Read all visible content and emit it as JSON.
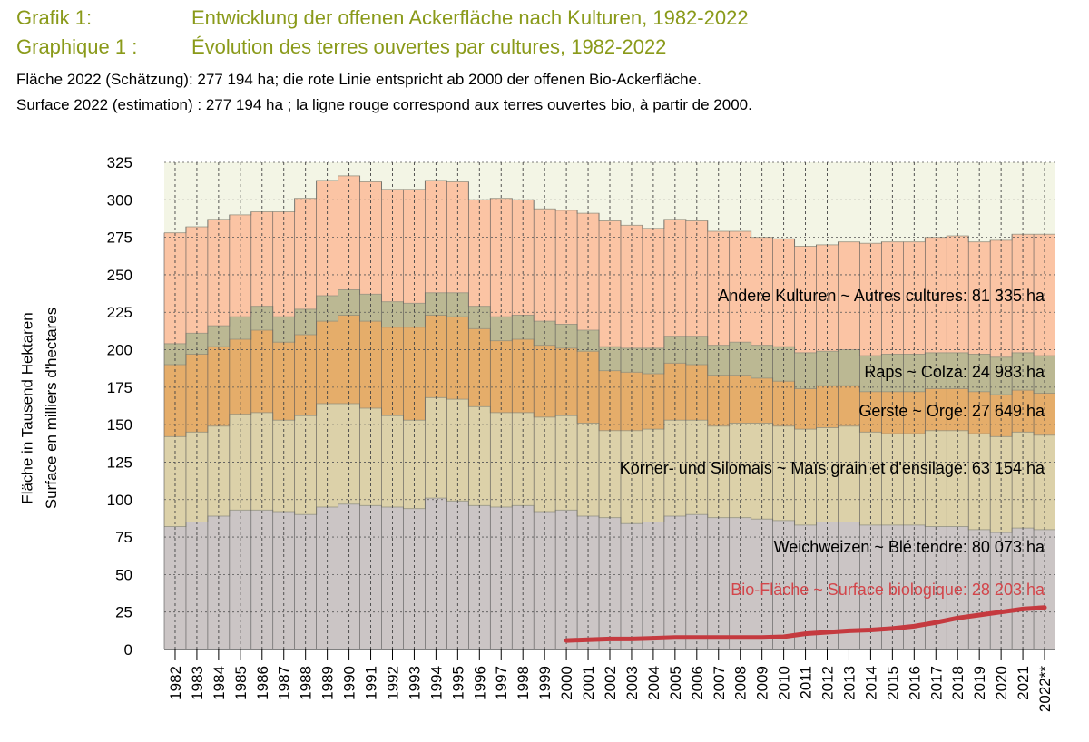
{
  "title_de_label": "Grafik 1:",
  "title_de": "Entwicklung der offenen Ackerfläche nach Kulturen, 1982-2022",
  "title_fr_label": "Graphique 1 :",
  "title_fr": "Évolution des terres ouvertes par cultures, 1982-2022",
  "subtitle_de": "Fläche 2022 (Schätzung): 277 194 ha; die rote Linie entspricht ab 2000 der offenen Bio-Ackerfläche.",
  "subtitle_fr": "Surface 2022 (estimation) : 277 194 ha ; la ligne rouge correspond aux terres ouvertes bio, à partir de 2000.",
  "ylabel_de": "Fläche in Tausend Hektaren",
  "ylabel_fr": "Surface en milliers d'hectares",
  "colors": {
    "weichweizen": "#cbc5c5",
    "mais": "#dcd1a9",
    "gerste": "#e5ad6a",
    "raps": "#bbb893",
    "andere": "#fbc4a4",
    "bio": "#c53a3f",
    "bio_label": "#d3454a",
    "plot_bg": "#f3f5e5"
  },
  "chart_data": {
    "type": "bar",
    "stacked": true,
    "categories": [
      "1982",
      "1983",
      "1984",
      "1985",
      "1986",
      "1987",
      "1988",
      "1989",
      "1990",
      "1991",
      "1992",
      "1993",
      "1994",
      "1995",
      "1996",
      "1997",
      "1998",
      "1999",
      "2000",
      "2001",
      "2002",
      "2003",
      "2004",
      "2005",
      "2006",
      "2007",
      "2008",
      "2009",
      "2010",
      "2011",
      "2012",
      "2013",
      "2014",
      "2015",
      "2016",
      "2017",
      "2018",
      "2019",
      "2020",
      "2021",
      "2022**"
    ],
    "ylim": [
      0,
      325
    ],
    "yticks": [
      0,
      25,
      50,
      75,
      100,
      125,
      150,
      175,
      200,
      225,
      250,
      275,
      300,
      325
    ],
    "grid": true,
    "series": [
      {
        "name": "Weichweizen ~ Blé tendre",
        "label": "Weichweizen   ~   Blé tendre: 80 073 ha",
        "color_key": "weichweizen",
        "values": [
          82,
          85,
          89,
          93,
          93,
          92,
          90,
          95,
          97,
          96,
          95,
          94,
          101,
          99,
          96,
          95,
          96,
          92,
          93,
          89,
          88,
          84,
          85,
          89,
          90,
          88,
          88,
          87,
          86,
          83,
          85,
          85,
          83,
          83,
          83,
          82,
          82,
          80,
          78,
          81,
          80
        ]
      },
      {
        "name": "Körner- und Silomais ~ Maïs grain et d'ensilage",
        "label": "Körner- und Silomais   ~   Maïs grain et d'ensilage: 63 154 ha",
        "color_key": "mais",
        "values": [
          60,
          60,
          60,
          64,
          65,
          61,
          66,
          69,
          67,
          65,
          61,
          59,
          67,
          68,
          66,
          63,
          62,
          63,
          63,
          62,
          58,
          62,
          62,
          64,
          63,
          61,
          63,
          64,
          63,
          64,
          63,
          64,
          62,
          61,
          61,
          64,
          64,
          64,
          64,
          64,
          63
        ]
      },
      {
        "name": "Gerste ~ Orge",
        "label": "Gerste   ~   Orge: 27 649 ha",
        "color_key": "gerste",
        "values": [
          48,
          52,
          53,
          50,
          55,
          52,
          54,
          55,
          59,
          58,
          59,
          62,
          55,
          55,
          52,
          48,
          49,
          48,
          45,
          48,
          40,
          39,
          37,
          38,
          37,
          34,
          32,
          30,
          30,
          27,
          28,
          27,
          27,
          28,
          28,
          28,
          28,
          28,
          28,
          28,
          28
        ]
      },
      {
        "name": "Raps ~ Colza",
        "label": "Raps   ~   Colza: 24 983 ha",
        "color_key": "raps",
        "values": [
          14,
          14,
          14,
          15,
          16,
          17,
          17,
          17,
          17,
          18,
          17,
          16,
          15,
          16,
          15,
          16,
          16,
          16,
          16,
          14,
          16,
          16,
          17,
          18,
          19,
          20,
          22,
          22,
          23,
          24,
          23,
          24,
          24,
          25,
          25,
          24,
          24,
          25,
          25,
          25,
          25
        ]
      },
      {
        "name": "Andere Kulturen ~ Autres cultures",
        "label": "Andere Kulturen   ~   Autres cultures: 81 335 ha",
        "color_key": "andere",
        "values": [
          74,
          71,
          71,
          68,
          63,
          70,
          74,
          77,
          76,
          75,
          75,
          76,
          75,
          74,
          71,
          79,
          77,
          75,
          76,
          78,
          84,
          82,
          80,
          78,
          77,
          76,
          74,
          72,
          72,
          71,
          71,
          72,
          75,
          75,
          75,
          77,
          78,
          75,
          78,
          79,
          81
        ]
      }
    ],
    "bio_line": {
      "name": "Bio-Fläche ~ Surface biologique",
      "label": "Bio-Fläche   ~   Surface biologique: 28 203 ha",
      "color_key": "bio",
      "x": [
        "2000",
        "2001",
        "2002",
        "2003",
        "2004",
        "2005",
        "2006",
        "2007",
        "2008",
        "2009",
        "2010",
        "2011",
        "2012",
        "2013",
        "2014",
        "2015",
        "2016",
        "2017",
        "2018",
        "2019",
        "2020",
        "2021",
        "2022**"
      ],
      "values": [
        6,
        6.5,
        7,
        7,
        7.5,
        8,
        8,
        8,
        8,
        8,
        8.5,
        10.5,
        11.5,
        12.5,
        13,
        14,
        15.5,
        18,
        21,
        23,
        25,
        27,
        28
      ]
    }
  }
}
